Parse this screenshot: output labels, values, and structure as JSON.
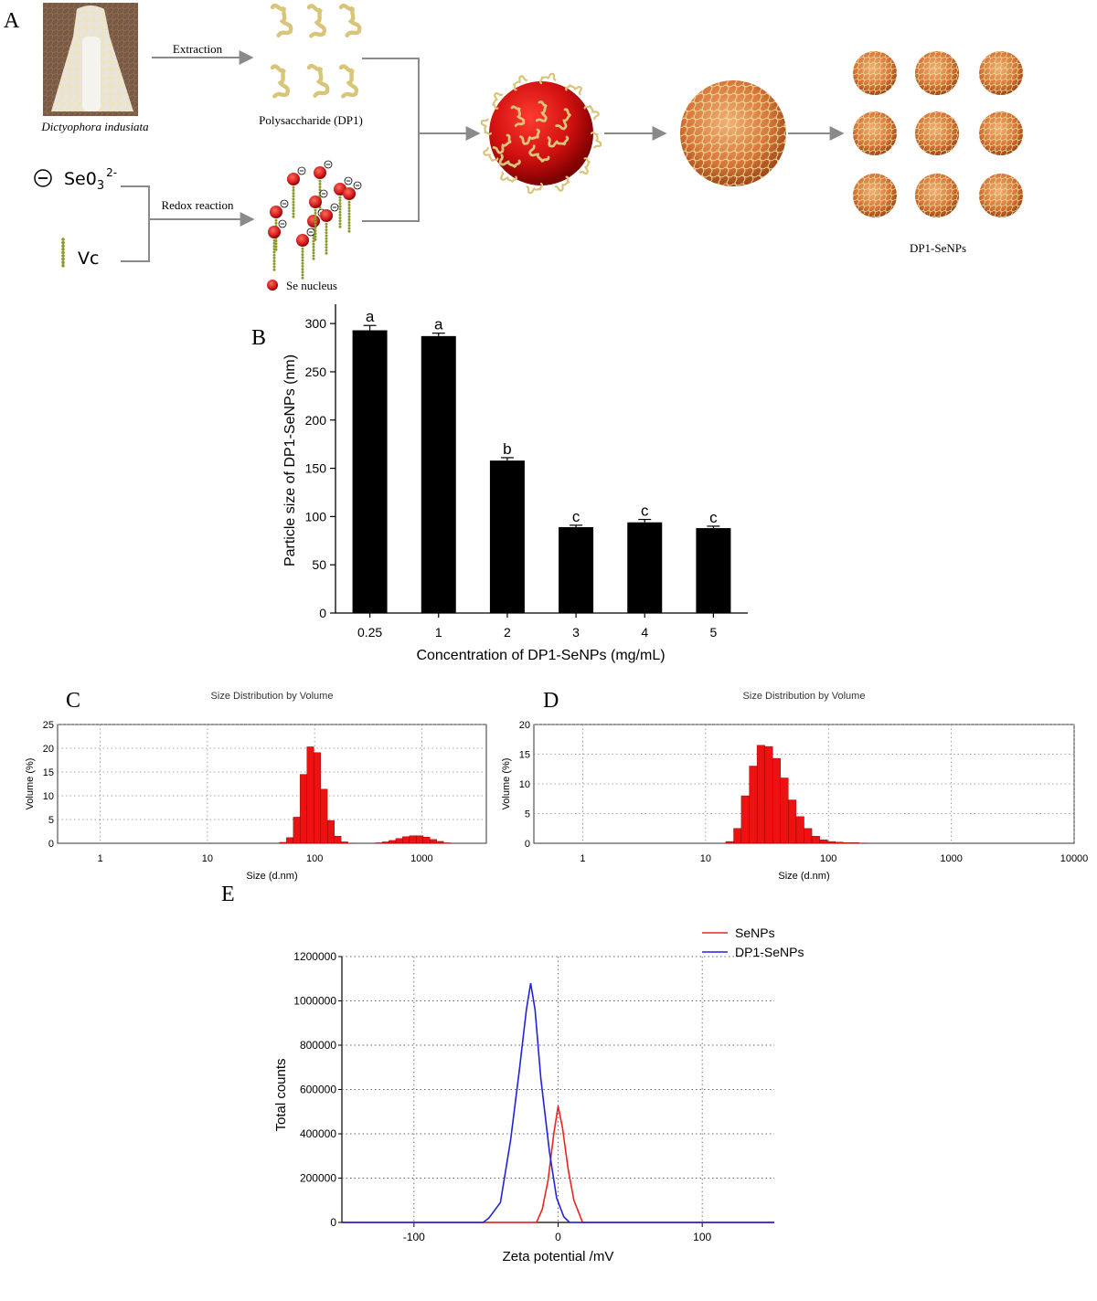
{
  "panel_labels": {
    "a": "A",
    "b": "B",
    "c": "C",
    "d": "D",
    "e": "E"
  },
  "scheme": {
    "source_label": "Dictyophora indusiata",
    "extraction_label": "Extraction",
    "polysaccharide_label": "Polysaccharide (DP1)",
    "selenite_label": "Se0",
    "selenite_sub": "3",
    "selenite_sup": "2-",
    "vc_label": "Vc",
    "redox_label": "Redox reaction",
    "se_nucleus_label": "Se nucleus",
    "product_label": "DP1-SeNPs",
    "colors": {
      "selenium": "#d81414",
      "polysaccharide": "#d9c57a",
      "vc": "#8a9a2a",
      "arrow": "#8a8a8a"
    }
  },
  "chart_data": [
    {
      "id": "B",
      "type": "bar",
      "categories": [
        "0.25",
        "1",
        "2",
        "3",
        "4",
        "5"
      ],
      "values": [
        293,
        287,
        158,
        89,
        94,
        88
      ],
      "errors": [
        5,
        3,
        3,
        2,
        3,
        2
      ],
      "significance": [
        "a",
        "a",
        "b",
        "c",
        "c",
        "c"
      ],
      "xlabel": "Concentration of DP1-SeNPs (mg/mL)",
      "ylabel": "Particle size of DP1-SeNPs (nm)",
      "ylim": [
        0,
        320
      ],
      "yticks": [
        "0",
        "50",
        "100",
        "150",
        "200",
        "250",
        "300"
      ],
      "bar_color": "#000000"
    },
    {
      "id": "C",
      "type": "bar",
      "title": "Size Distribution by Volume",
      "xlabel": "Size (d.nm)",
      "ylabel": "Volume (%)",
      "x_scale": "log",
      "xlim": [
        0.4,
        4000
      ],
      "ylim": [
        0,
        25
      ],
      "xticks": [
        "1",
        "10",
        "100",
        "1000"
      ],
      "yticks": [
        "0",
        "5",
        "10",
        "15",
        "20",
        "25"
      ],
      "grid": true,
      "x": [
        50.7,
        58.8,
        68.1,
        78.8,
        91.3,
        105.7,
        122.4,
        141.8,
        164.2,
        190.1,
        220.2,
        255,
        295.3,
        342,
        396.1,
        458.7,
        531.2,
        615.1,
        712.4,
        825,
        955.4,
        1106,
        1281,
        1484,
        1718
      ],
      "values": [
        0.2,
        1.2,
        5.5,
        14.5,
        20.3,
        19.1,
        11.4,
        4.8,
        1.5,
        0.3,
        0.05,
        0,
        0,
        0,
        0.1,
        0.3,
        0.6,
        1.0,
        1.4,
        1.6,
        1.6,
        1.3,
        0.8,
        0.4,
        0.1
      ],
      "bar_color": "#ee1111"
    },
    {
      "id": "D",
      "type": "bar",
      "title": "Size Distribution by Volume",
      "xlabel": "Size (d.nm)",
      "ylabel": "Volume (%)",
      "x_scale": "log",
      "xlim": [
        0.4,
        10000
      ],
      "ylim": [
        0,
        20
      ],
      "xticks": [
        "1",
        "10",
        "100",
        "1000",
        "10000"
      ],
      "yticks": [
        "0",
        "5",
        "10",
        "15",
        "20"
      ],
      "grid": true,
      "x": [
        15.7,
        18.2,
        21,
        24.4,
        28.2,
        32.7,
        37.8,
        43.8,
        50.7,
        58.8,
        68.1,
        78.8,
        91.3,
        105.7,
        122.4,
        141.8,
        164.2,
        190.1
      ],
      "values": [
        0.3,
        2.5,
        8.0,
        13.0,
        16.5,
        16.3,
        14.3,
        11.0,
        7.3,
        4.5,
        2.5,
        1.2,
        0.6,
        0.3,
        0.2,
        0.1,
        0.1,
        0.05
      ],
      "bar_color": "#ee1111"
    },
    {
      "id": "E",
      "type": "line",
      "xlabel": "Zeta potential /mV",
      "ylabel": "Total counts",
      "xlim": [
        -150,
        150
      ],
      "ylim": [
        0,
        1200000
      ],
      "xticks": [
        "-100",
        "0",
        "100"
      ],
      "yticks": [
        "0",
        "200000",
        "400000",
        "600000",
        "800000",
        "1000000",
        "1200000"
      ],
      "grid": true,
      "legend": "top-right",
      "series": [
        {
          "name": "SeNPs",
          "color": "#ee2222",
          "x": [
            -150,
            -15,
            -11,
            -7,
            -3,
            0,
            3,
            7,
            11,
            17,
            150
          ],
          "y": [
            0,
            0,
            60000,
            190000,
            400000,
            525000,
            430000,
            240000,
            100000,
            0,
            0
          ]
        },
        {
          "name": "DP1-SeNPs",
          "color": "#2222dd",
          "x": [
            -150,
            -52,
            -48,
            -40,
            -33,
            -27,
            -22,
            -19,
            -16,
            -12,
            -6,
            -1,
            4,
            8,
            150
          ],
          "y": [
            0,
            0,
            20000,
            90000,
            370000,
            680000,
            960000,
            1080000,
            960000,
            650000,
            320000,
            110000,
            25000,
            0,
            0
          ]
        }
      ]
    }
  ]
}
